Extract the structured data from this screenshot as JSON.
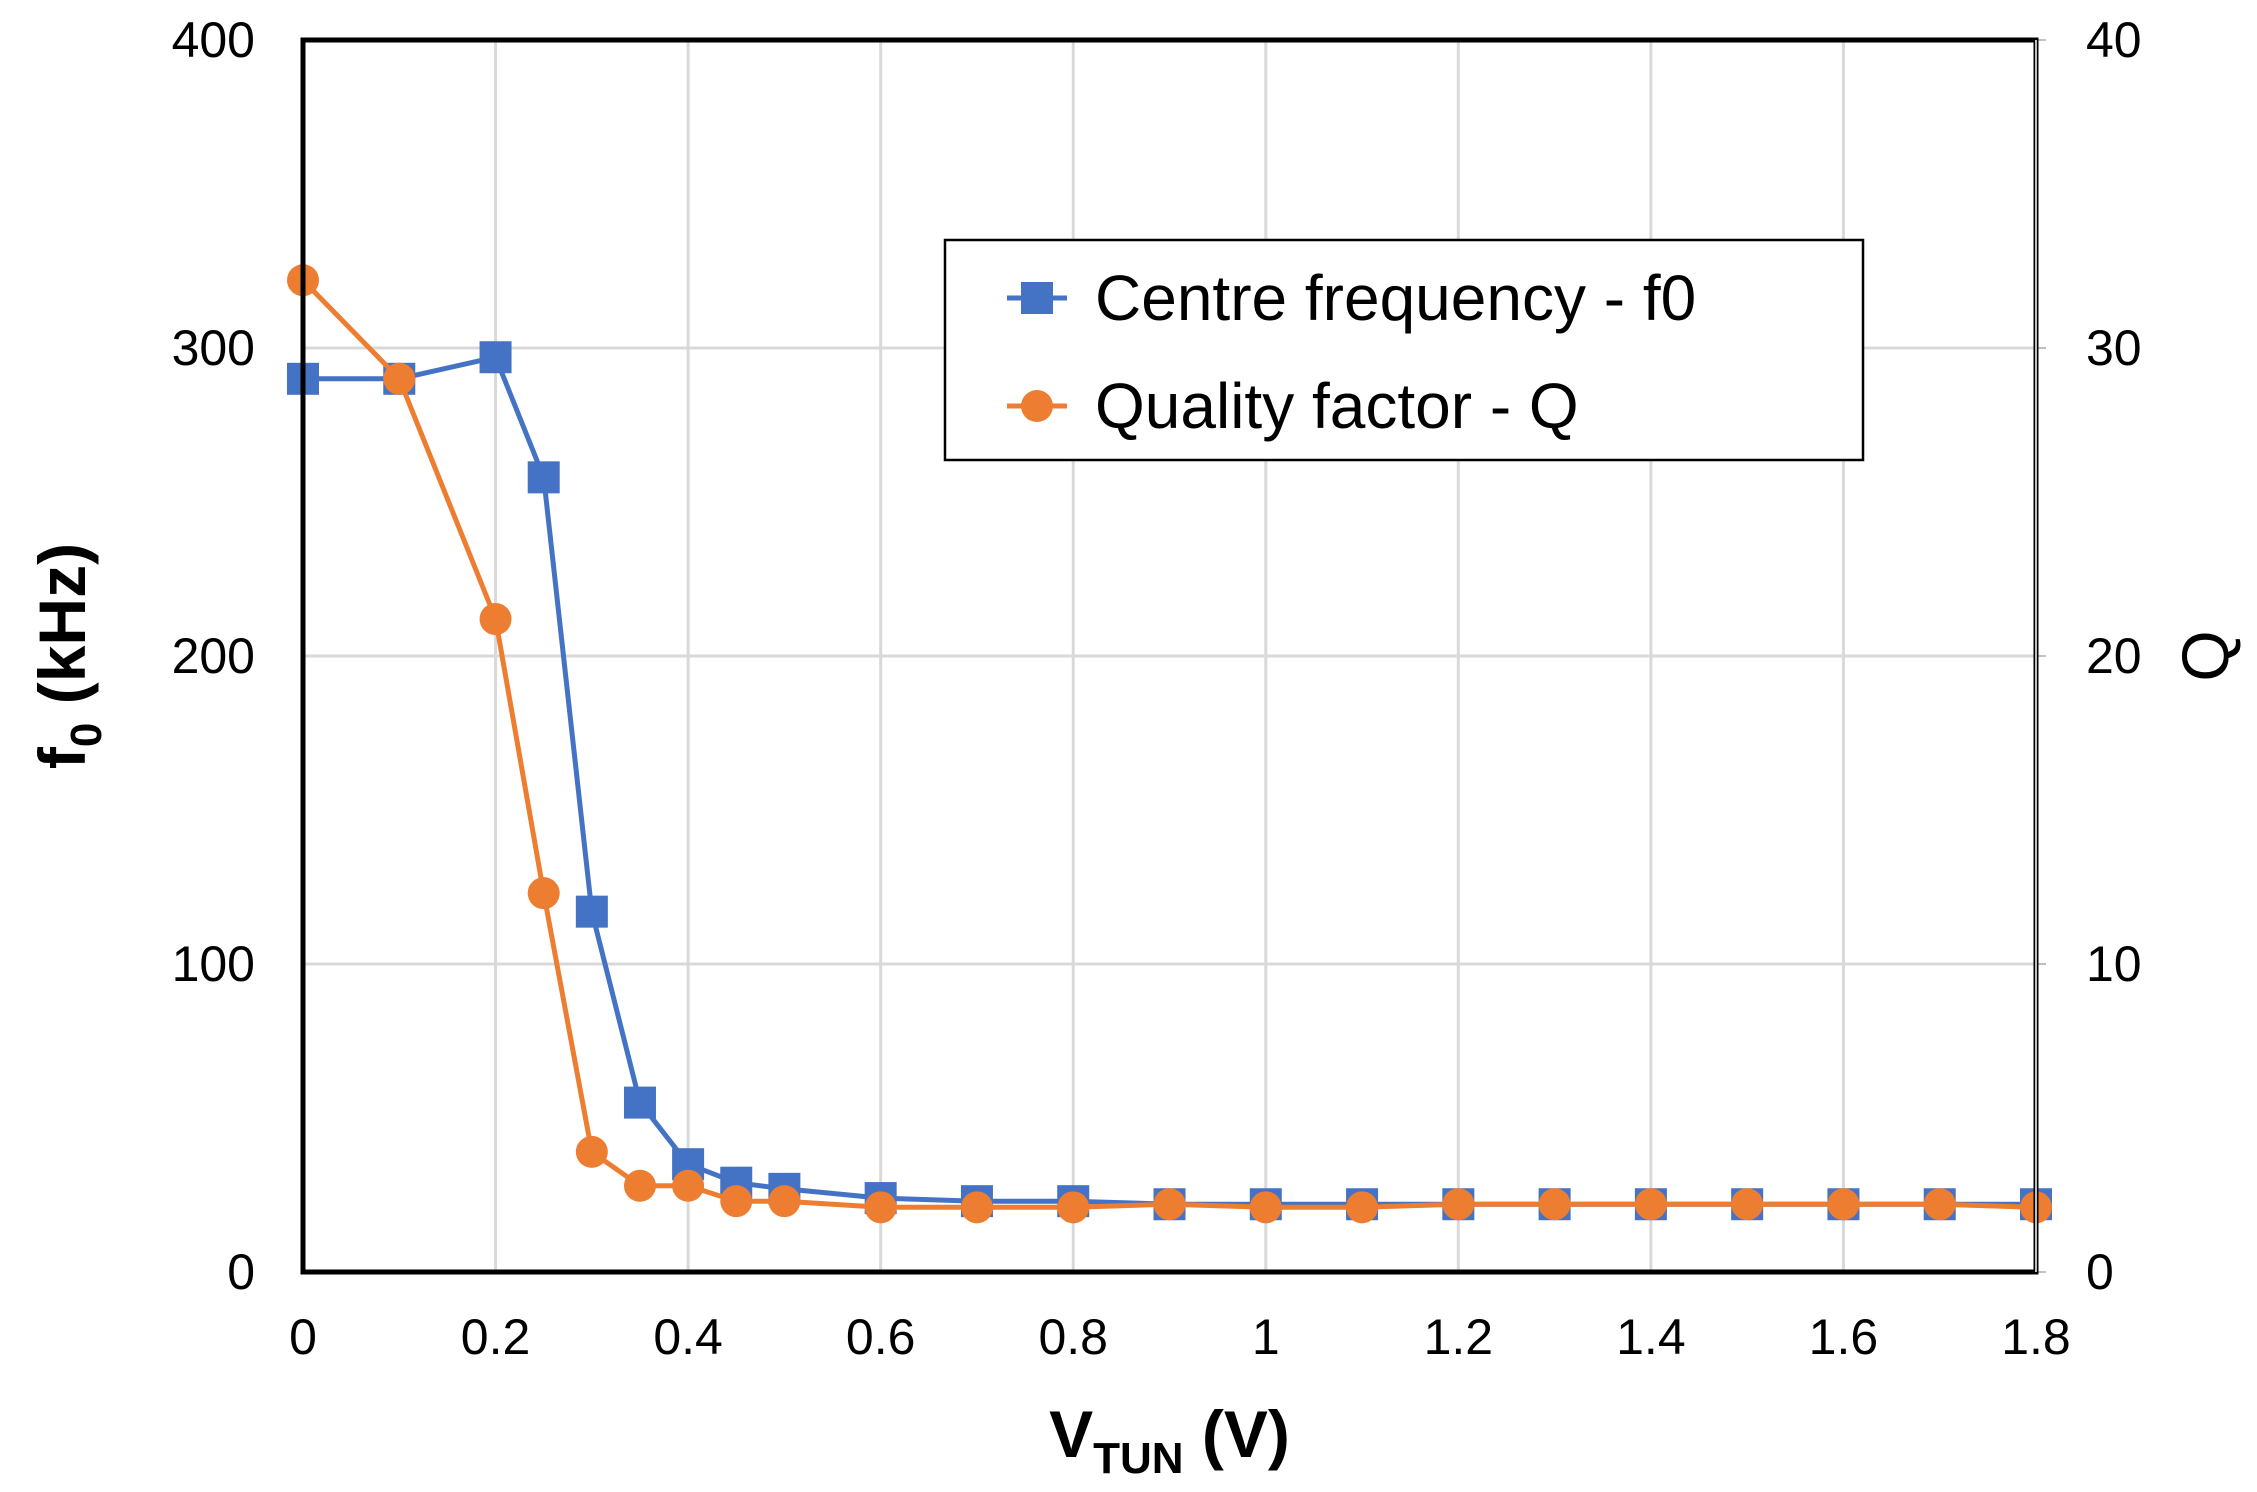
{
  "chart_data": {
    "type": "line",
    "x": [
      0,
      0.1,
      0.2,
      0.25,
      0.3,
      0.35,
      0.4,
      0.45,
      0.5,
      0.6,
      0.7,
      0.8,
      0.9,
      1.0,
      1.1,
      1.2,
      1.3,
      1.4,
      1.5,
      1.6,
      1.7,
      1.8
    ],
    "series": [
      {
        "name": "Centre frequency - f0",
        "axis": "left",
        "color": "#4472C4",
        "marker": "square",
        "values": [
          290,
          290,
          297,
          258,
          117,
          55,
          35,
          29,
          27,
          24,
          23,
          23,
          22,
          22,
          22,
          22,
          22,
          22,
          22,
          22,
          22,
          22
        ]
      },
      {
        "name": "Quality factor - Q",
        "axis": "right",
        "color": "#ED7D31",
        "marker": "circle",
        "values": [
          32.2,
          29.0,
          21.2,
          12.3,
          3.9,
          2.8,
          2.8,
          2.3,
          2.3,
          2.1,
          2.1,
          2.1,
          2.2,
          2.1,
          2.1,
          2.2,
          2.2,
          2.2,
          2.2,
          2.2,
          2.2,
          2.1
        ]
      }
    ],
    "xlim": [
      0,
      1.8
    ],
    "ylim_left": [
      0,
      400
    ],
    "ylim_right": [
      0,
      40
    ],
    "x_ticks": [
      "0",
      "0.2",
      "0.4",
      "0.6",
      "0.8",
      "1",
      "1.2",
      "1.4",
      "1.6",
      "1.8"
    ],
    "y_left_ticks": [
      "0",
      "100",
      "200",
      "300",
      "400"
    ],
    "y_right_ticks": [
      "0",
      "10",
      "20",
      "30",
      "40"
    ],
    "xlabel_main": "V",
    "xlabel_sub": "TUN",
    "xlabel_tail": " (V)",
    "ylabel_main": "f",
    "ylabel_sub": "0",
    "ylabel_tail": " (kHz)",
    "y2label": "Q",
    "grid": true,
    "legend_position": "top-right"
  }
}
